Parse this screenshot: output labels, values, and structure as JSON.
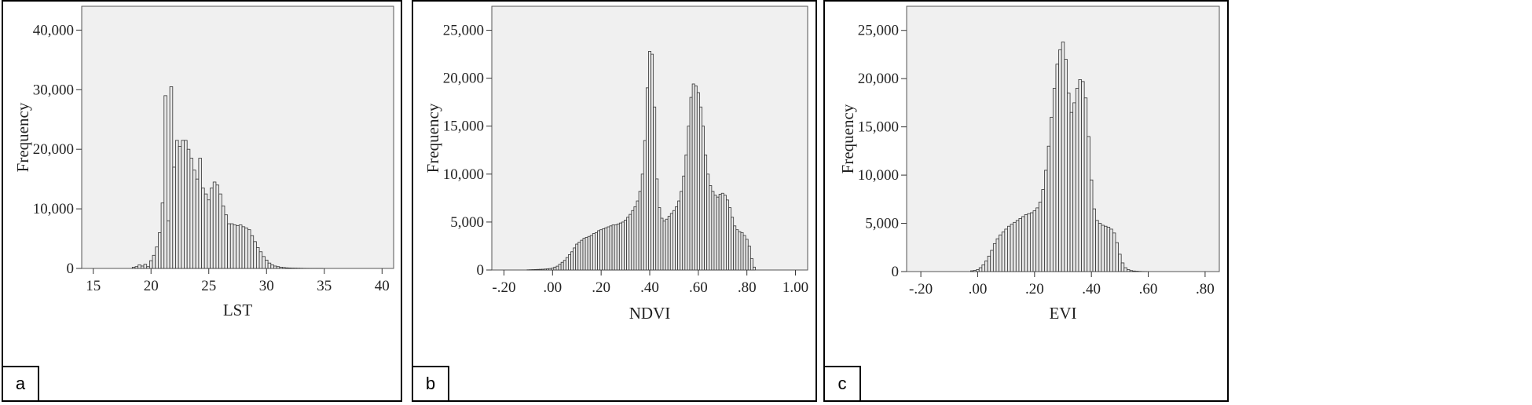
{
  "panels": [
    {
      "letter": "a"
    },
    {
      "letter": "b"
    },
    {
      "letter": "c"
    }
  ],
  "chart_data": [
    {
      "type": "bar",
      "title": "",
      "xlabel": "LST",
      "ylabel": "Frequency",
      "xlim": [
        14,
        41
      ],
      "ylim": [
        0,
        44000
      ],
      "x_ticks": [
        15,
        20,
        25,
        30,
        35,
        40
      ],
      "x_tick_labels": [
        "15",
        "20",
        "25",
        "30",
        "35",
        "40"
      ],
      "y_ticks": [
        0,
        10000,
        20000,
        30000,
        40000
      ],
      "y_tick_labels": [
        "0",
        "10,000",
        "20,000",
        "30,000",
        "40,000"
      ],
      "bin_width": 0.25,
      "x": [
        18.5,
        18.75,
        19,
        19.25,
        19.5,
        19.75,
        20,
        20.25,
        20.5,
        20.75,
        21,
        21.25,
        21.5,
        21.75,
        22,
        22.25,
        22.5,
        22.75,
        23,
        23.25,
        23.5,
        23.75,
        24,
        24.25,
        24.5,
        24.75,
        25,
        25.25,
        25.5,
        25.75,
        26,
        26.25,
        26.5,
        26.75,
        27,
        27.25,
        27.5,
        27.75,
        28,
        28.25,
        28.5,
        28.75,
        29,
        29.25,
        29.5,
        29.75,
        30,
        30.25,
        30.5,
        30.75,
        31,
        31.25,
        31.5,
        31.75,
        32,
        32.25,
        32.5,
        32.75,
        33,
        33.25,
        33.5,
        33.75,
        34,
        34.25,
        34.5,
        34.75
      ],
      "values": [
        200,
        300,
        600,
        400,
        700,
        300,
        1300,
        2200,
        3600,
        6000,
        11000,
        29000,
        8000,
        30500,
        17000,
        21500,
        20500,
        21500,
        21500,
        20000,
        18500,
        16500,
        15000,
        18500,
        13500,
        12500,
        11500,
        13500,
        14500,
        14000,
        12500,
        10500,
        9000,
        7500,
        7500,
        7300,
        7200,
        7300,
        7000,
        6800,
        6500,
        5500,
        4500,
        3500,
        2800,
        2000,
        1400,
        900,
        600,
        400,
        300,
        200,
        150,
        100,
        80,
        60,
        50,
        40,
        30,
        20,
        15,
        10,
        8,
        5,
        3,
        2
      ]
    },
    {
      "type": "bar",
      "title": "",
      "xlabel": "NDVI",
      "ylabel": "Frequency",
      "xlim": [
        -0.25,
        1.05
      ],
      "ylim": [
        0,
        27500
      ],
      "x_ticks": [
        -0.2,
        0,
        0.2,
        0.4,
        0.6,
        0.8,
        1.0
      ],
      "x_tick_labels": [
        "-.20",
        ".00",
        ".20",
        ".40",
        ".60",
        ".80",
        "1.00"
      ],
      "y_ticks": [
        0,
        5000,
        10000,
        15000,
        20000,
        25000
      ],
      "y_tick_labels": [
        "0",
        "5,000",
        "10,000",
        "15,000",
        "20,000",
        "25,000"
      ],
      "bin_width": 0.01,
      "x": [
        -0.1,
        -0.09,
        -0.08,
        -0.07,
        -0.06,
        -0.05,
        -0.04,
        -0.03,
        -0.02,
        -0.01,
        0,
        0.01,
        0.02,
        0.03,
        0.04,
        0.05,
        0.06,
        0.07,
        0.08,
        0.09,
        0.1,
        0.11,
        0.12,
        0.13,
        0.14,
        0.15,
        0.16,
        0.17,
        0.18,
        0.19,
        0.2,
        0.21,
        0.22,
        0.23,
        0.24,
        0.25,
        0.26,
        0.27,
        0.28,
        0.29,
        0.3,
        0.31,
        0.32,
        0.33,
        0.34,
        0.35,
        0.36,
        0.37,
        0.38,
        0.39,
        0.4,
        0.41,
        0.42,
        0.43,
        0.44,
        0.45,
        0.46,
        0.47,
        0.48,
        0.49,
        0.5,
        0.51,
        0.52,
        0.53,
        0.54,
        0.55,
        0.56,
        0.57,
        0.58,
        0.59,
        0.6,
        0.61,
        0.62,
        0.63,
        0.64,
        0.65,
        0.66,
        0.67,
        0.68,
        0.69,
        0.7,
        0.71,
        0.72,
        0.73,
        0.74,
        0.75,
        0.76,
        0.77,
        0.78,
        0.79,
        0.8,
        0.81,
        0.82,
        0.83
      ],
      "values": [
        20,
        30,
        40,
        50,
        60,
        70,
        80,
        100,
        120,
        150,
        200,
        300,
        400,
        600,
        800,
        1000,
        1300,
        1600,
        1900,
        2300,
        2700,
        2900,
        3100,
        3300,
        3400,
        3500,
        3600,
        3800,
        3900,
        4100,
        4200,
        4300,
        4400,
        4500,
        4600,
        4700,
        4700,
        4800,
        4900,
        5000,
        5200,
        5500,
        5800,
        6200,
        6600,
        7200,
        8200,
        10000,
        13500,
        19000,
        22800,
        22500,
        17000,
        9500,
        6500,
        5400,
        5100,
        5300,
        5600,
        5900,
        6200,
        6600,
        7200,
        8200,
        9800,
        12000,
        15000,
        18000,
        19400,
        19200,
        18500,
        17000,
        15000,
        12000,
        10000,
        8800,
        8200,
        7800,
        7600,
        7900,
        8000,
        7800,
        7300,
        6500,
        5500,
        4600,
        4200,
        4000,
        3900,
        3600,
        3200,
        2500,
        1200,
        300
      ]
    },
    {
      "type": "bar",
      "title": "",
      "xlabel": "EVI",
      "ylabel": "Frequency",
      "xlim": [
        -0.25,
        0.85
      ],
      "ylim": [
        0,
        27500
      ],
      "x_ticks": [
        -0.2,
        0,
        0.2,
        0.4,
        0.6,
        0.8
      ],
      "x_tick_labels": [
        "-.20",
        ".00",
        ".20",
        ".40",
        ".60",
        ".80"
      ],
      "y_ticks": [
        0,
        5000,
        10000,
        15000,
        20000,
        25000
      ],
      "y_tick_labels": [
        "0",
        "5,000",
        "10,000",
        "15,000",
        "20,000",
        "25,000"
      ],
      "bin_width": 0.01,
      "x": [
        -0.02,
        -0.01,
        0,
        0.01,
        0.02,
        0.03,
        0.04,
        0.05,
        0.06,
        0.07,
        0.08,
        0.09,
        0.1,
        0.11,
        0.12,
        0.13,
        0.14,
        0.15,
        0.16,
        0.17,
        0.18,
        0.19,
        0.2,
        0.21,
        0.22,
        0.23,
        0.24,
        0.25,
        0.26,
        0.27,
        0.28,
        0.29,
        0.3,
        0.31,
        0.32,
        0.33,
        0.34,
        0.35,
        0.36,
        0.37,
        0.38,
        0.39,
        0.4,
        0.41,
        0.42,
        0.43,
        0.44,
        0.45,
        0.46,
        0.47,
        0.48,
        0.49,
        0.5,
        0.51,
        0.52,
        0.53,
        0.54,
        0.55,
        0.56,
        0.57,
        0.58,
        0.59
      ],
      "values": [
        80,
        120,
        200,
        400,
        700,
        1100,
        1600,
        2200,
        2900,
        3400,
        3800,
        4100,
        4400,
        4700,
        4900,
        5100,
        5300,
        5500,
        5700,
        5900,
        6000,
        6100,
        6300,
        6600,
        7200,
        8500,
        10500,
        13000,
        16000,
        19000,
        21500,
        23000,
        23800,
        22000,
        18500,
        16500,
        17500,
        19000,
        19900,
        19700,
        18000,
        14000,
        9500,
        6500,
        5300,
        5000,
        4800,
        4700,
        4600,
        4400,
        4000,
        3000,
        1800,
        900,
        400,
        200,
        100,
        60,
        40,
        20,
        10,
        5
      ]
    }
  ]
}
